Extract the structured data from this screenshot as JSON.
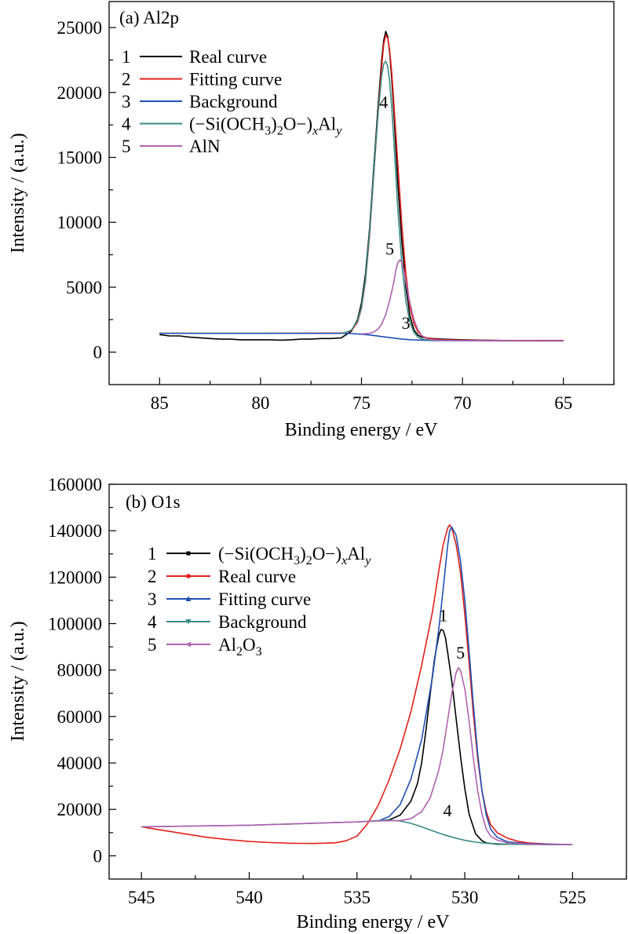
{
  "chart_data": [
    {
      "type": "line",
      "panel_label": "(a) Al2p",
      "xlabel": "Binding energy / eV",
      "ylabel": "Intensity / (a.u.)",
      "xlim": [
        87.5,
        62.5
      ],
      "ylim": [
        -2500,
        27000
      ],
      "x_reversed": true,
      "xticks": [
        85,
        80,
        75,
        70,
        65
      ],
      "yticks": [
        0,
        5000,
        10000,
        15000,
        20000,
        25000
      ],
      "legend_placement": "top-left",
      "legend": [
        {
          "num": "1",
          "label": "Real curve",
          "color": "#000000"
        },
        {
          "num": "2",
          "label": "Fitting curve",
          "color": "#e0201b"
        },
        {
          "num": "3",
          "label": "Background",
          "color": "#1f4fb4"
        },
        {
          "num": "4",
          "label": "(−Si(OCH3)2O−)xAly",
          "color": "#3a8a84"
        },
        {
          "num": "5",
          "label": "AlN",
          "color": "#b062b0"
        }
      ],
      "annotations": [
        {
          "text": "4",
          "x": 73.9,
          "y": 18800
        },
        {
          "text": "5",
          "x": 73.6,
          "y": 7500
        },
        {
          "text": "3",
          "x": 72.8,
          "y": 1800
        }
      ],
      "series": [
        {
          "name": "Real curve",
          "color": "#000000",
          "x": [
            85,
            84.5,
            84,
            83.5,
            83,
            82.5,
            82,
            81.5,
            81,
            80.5,
            80,
            79.5,
            79,
            78.5,
            78,
            77.5,
            77,
            76.5,
            76,
            75.8,
            75.5,
            75.2,
            75,
            74.8,
            74.6,
            74.4,
            74.2,
            74,
            73.9,
            73.8,
            73.7,
            73.6,
            73.5,
            73.4,
            73.2,
            73,
            72.8,
            72.6,
            72.4,
            72.2,
            72,
            71.8,
            71.5,
            71,
            70,
            69,
            68,
            67,
            66,
            65
          ],
          "y": [
            1350,
            1250,
            1250,
            1150,
            1100,
            1050,
            1000,
            1000,
            950,
            950,
            950,
            950,
            920,
            950,
            1000,
            1000,
            1050,
            1050,
            1100,
            1300,
            1600,
            2500,
            3800,
            6000,
            9500,
            14000,
            18500,
            22500,
            24000,
            24700,
            24300,
            23000,
            21000,
            18500,
            13000,
            8500,
            5000,
            2800,
            1700,
            1300,
            1150,
            1100,
            1050,
            1000,
            950,
            920,
            900,
            900,
            900,
            900
          ]
        },
        {
          "name": "Fitting curve",
          "color": "#e0201b",
          "x": [
            85,
            84,
            82,
            80,
            78,
            76,
            75.8,
            75.5,
            75.2,
            75,
            74.8,
            74.6,
            74.4,
            74.2,
            74,
            73.9,
            73.8,
            73.7,
            73.6,
            73.5,
            73.4,
            73.2,
            73,
            72.8,
            72.6,
            72.4,
            72.2,
            72,
            71.8,
            71.5,
            71,
            70,
            68,
            66,
            65
          ],
          "y": [
            1450,
            1450,
            1450,
            1450,
            1460,
            1470,
            1500,
            1650,
            2300,
            3400,
            5500,
            9000,
            13500,
            18000,
            22000,
            23700,
            24400,
            24200,
            23200,
            21500,
            19200,
            14500,
            9800,
            6000,
            3500,
            2200,
            1550,
            1250,
            1100,
            1020,
            950,
            920,
            900,
            890,
            890
          ]
        },
        {
          "name": "Background",
          "color": "#1f4fb4",
          "x": [
            85,
            80,
            76,
            75.5,
            75,
            74.5,
            74,
            73.5,
            73,
            72.5,
            72,
            71.5,
            71,
            70,
            68,
            65
          ],
          "y": [
            1450,
            1450,
            1450,
            1430,
            1380,
            1300,
            1200,
            1100,
            1000,
            950,
            920,
            900,
            890,
            880,
            870,
            870
          ]
        },
        {
          "name": "(−Si(OCH3)2O−)xAly",
          "color": "#3a8a84",
          "x": [
            76,
            75.8,
            75.5,
            75.2,
            75,
            74.8,
            74.6,
            74.4,
            74.2,
            74,
            73.9,
            73.8,
            73.7,
            73.6,
            73.5,
            73.4,
            73.2,
            73,
            72.8,
            72.6,
            72.4,
            72.2,
            72,
            71.8,
            71.5
          ],
          "y": [
            1450,
            1500,
            1700,
            2400,
            3500,
            5600,
            9200,
            13600,
            18000,
            21300,
            22200,
            22400,
            22000,
            20800,
            18800,
            16300,
            11000,
            6800,
            3900,
            2300,
            1500,
            1150,
            1000,
            950,
            920
          ]
        },
        {
          "name": "AlN",
          "color": "#b062b0",
          "x": [
            75,
            74.6,
            74.4,
            74.2,
            74,
            73.8,
            73.6,
            73.4,
            73.3,
            73.2,
            73.1,
            73,
            72.9,
            72.8,
            72.6,
            72.4,
            72.2,
            72,
            71.8,
            71.5,
            71,
            70,
            68,
            66,
            65
          ],
          "y": [
            1400,
            1450,
            1550,
            1750,
            2150,
            2900,
            4000,
            5400,
            6300,
            6900,
            7100,
            6900,
            6300,
            5400,
            3800,
            2500,
            1700,
            1250,
            1050,
            950,
            910,
            890,
            880,
            870,
            870
          ]
        }
      ]
    },
    {
      "type": "line",
      "panel_label": "(b) O1s",
      "xlabel": "Binding energy / eV",
      "ylabel": "Intensity / (a.u.)",
      "xlim": [
        546.5,
        522.5
      ],
      "ylim": [
        -10000,
        160000
      ],
      "x_reversed": true,
      "xticks": [
        545,
        540,
        535,
        530,
        525
      ],
      "yticks": [
        0,
        20000,
        40000,
        60000,
        80000,
        100000,
        120000,
        140000,
        160000
      ],
      "legend_placement": "top-left",
      "legend": [
        {
          "num": "1",
          "label": "(−Si(OCH3)2O−)xAly",
          "color": "#000000",
          "marker": "square"
        },
        {
          "num": "2",
          "label": "Real curve",
          "color": "#e0201b",
          "marker": "circle"
        },
        {
          "num": "3",
          "label": "Fitting curve",
          "color": "#1f4fb4",
          "marker": "triangle-up"
        },
        {
          "num": "4",
          "label": "Background",
          "color": "#3a8a84",
          "marker": "triangle-down"
        },
        {
          "num": "5",
          "label": "Al2O3",
          "color": "#b062b0",
          "marker": "triangle-left"
        }
      ],
      "annotations": [
        {
          "text": "1",
          "x": 531.0,
          "y": 101000
        },
        {
          "text": "5",
          "x": 530.2,
          "y": 85000
        },
        {
          "text": "4",
          "x": 530.8,
          "y": 17000
        }
      ],
      "series": [
        {
          "name": "(−Si(OCH3)2O−)xAly",
          "color": "#000000",
          "x": [
            534,
            533.5,
            533,
            532.5,
            532.2,
            532,
            531.8,
            531.6,
            531.4,
            531.2,
            531.1,
            531,
            530.9,
            530.8,
            530.6,
            530.4,
            530.2,
            530,
            529.8,
            529.5,
            529.2,
            529,
            528.5,
            528
          ],
          "y": [
            15000,
            15500,
            17500,
            23500,
            31000,
            40000,
            54000,
            70000,
            85000,
            95000,
            97500,
            97000,
            94000,
            88000,
            75000,
            59000,
            43000,
            29000,
            18000,
            9500,
            6500,
            5500,
            5000,
            5000
          ]
        },
        {
          "name": "Real curve",
          "color": "#e0201b",
          "x": [
            545,
            544,
            543,
            542,
            541,
            540,
            539,
            538,
            537,
            536,
            535.5,
            535,
            534.5,
            534,
            533.5,
            533,
            532.5,
            532,
            531.5,
            531.2,
            531,
            530.8,
            530.7,
            530.6,
            530.4,
            530.2,
            530,
            529.8,
            529.6,
            529.4,
            529.2,
            529,
            528.8,
            528.5,
            528.2,
            528,
            527.8,
            527.5,
            527,
            526,
            525
          ],
          "y": [
            12500,
            11000,
            9500,
            8000,
            7000,
            6200,
            5700,
            5400,
            5300,
            5600,
            6500,
            8500,
            14000,
            22000,
            33000,
            46000,
            62000,
            82000,
            105000,
            123000,
            134000,
            141000,
            142500,
            141000,
            134000,
            122000,
            104000,
            83000,
            61000,
            42000,
            28000,
            19000,
            13500,
            10000,
            8500,
            7500,
            7000,
            6200,
            5500,
            5000,
            4800
          ]
        },
        {
          "name": "Fitting curve",
          "color": "#1f4fb4",
          "x": [
            534,
            533.5,
            533,
            532.5,
            532,
            531.5,
            531.2,
            531,
            530.8,
            530.7,
            530.6,
            530.4,
            530.2,
            530,
            529.8,
            529.6,
            529.4,
            529.2,
            529,
            528.8,
            528.5,
            528,
            527,
            526,
            525
          ],
          "y": [
            15000,
            17000,
            22000,
            33000,
            50000,
            77000,
            98000,
            115000,
            133000,
            140000,
            141500,
            138000,
            127000,
            110000,
            88000,
            65000,
            44000,
            28000,
            17500,
            11500,
            8000,
            6000,
            5200,
            5000,
            4800
          ]
        },
        {
          "name": "Background",
          "color": "#3a8a84",
          "x": [
            545,
            540,
            535,
            534,
            533.5,
            533,
            532.5,
            532,
            531.5,
            531,
            530.5,
            530,
            529.5,
            529,
            528,
            527,
            526,
            525
          ],
          "y": [
            12500,
            13200,
            14600,
            15200,
            15300,
            15000,
            14000,
            12500,
            10800,
            9200,
            7800,
            6700,
            5900,
            5400,
            5000,
            4900,
            4800,
            4800
          ]
        },
        {
          "name": "Al2O3",
          "color": "#b062b0",
          "x": [
            545,
            540,
            535,
            534,
            533,
            532.5,
            532,
            531.6,
            531.2,
            531,
            530.8,
            530.6,
            530.4,
            530.3,
            530.2,
            530,
            529.8,
            529.6,
            529.4,
            529.2,
            529,
            528.8,
            528.5,
            528,
            527,
            526,
            525
          ],
          "y": [
            12500,
            13200,
            14600,
            15000,
            15200,
            16000,
            19000,
            25000,
            37000,
            46000,
            58000,
            70000,
            79000,
            81000,
            80000,
            72000,
            58000,
            42000,
            28000,
            18000,
            11500,
            8500,
            6800,
            5600,
            5000,
            4900,
            4800
          ]
        }
      ]
    }
  ]
}
